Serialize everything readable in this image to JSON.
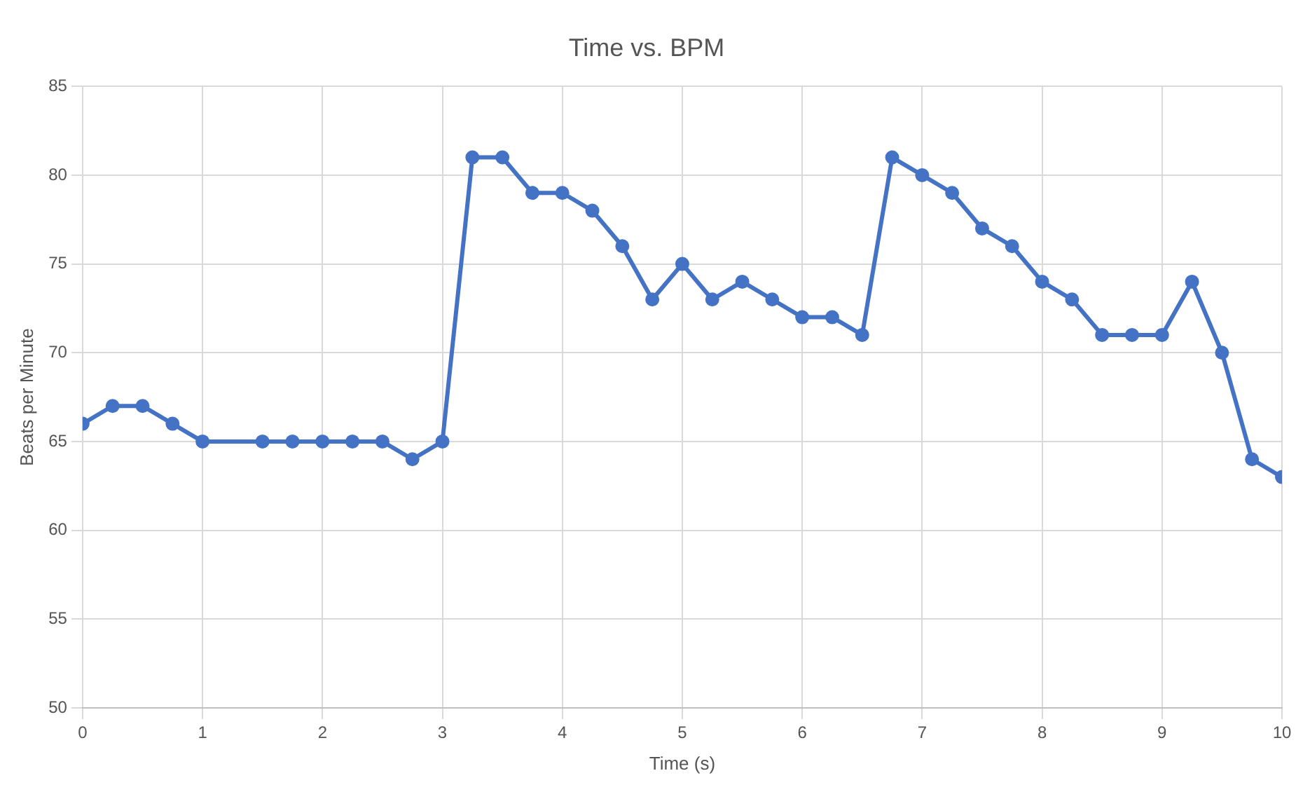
{
  "chart_data": {
    "type": "line",
    "title": "Time vs. BPM",
    "xlabel": "Time (s)",
    "ylabel": "Beats per Minute",
    "x": [
      0,
      0.25,
      0.5,
      0.75,
      1,
      1.5,
      1.75,
      2,
      2.25,
      2.5,
      2.75,
      3,
      3.25,
      3.5,
      3.75,
      4,
      4.25,
      4.5,
      4.75,
      5,
      5.25,
      5.5,
      5.75,
      6,
      6.25,
      6.5,
      6.75,
      7,
      7.25,
      7.5,
      7.75,
      8,
      8.25,
      8.5,
      8.75,
      9,
      9.25,
      9.5,
      9.75,
      10
    ],
    "series": [
      {
        "color": "#4472c4",
        "values": [
          66,
          67,
          67,
          66,
          65,
          65,
          65,
          65,
          65,
          65,
          64,
          65,
          81,
          81,
          79,
          79,
          78,
          76,
          73,
          75,
          73,
          74,
          73,
          72,
          72,
          71,
          81,
          80,
          79,
          77,
          76,
          74,
          73,
          71,
          71,
          71,
          74,
          70,
          64,
          63
        ]
      }
    ],
    "xlim": [
      0,
      10
    ],
    "xticks": [
      0,
      1,
      2,
      3,
      4,
      5,
      6,
      7,
      8,
      9,
      10
    ],
    "ylim": [
      50,
      85
    ],
    "yticks": [
      50,
      55,
      60,
      65,
      70,
      75,
      80,
      85
    ],
    "grid": true,
    "legend": false,
    "marker": "circle",
    "line_style": "solid"
  }
}
